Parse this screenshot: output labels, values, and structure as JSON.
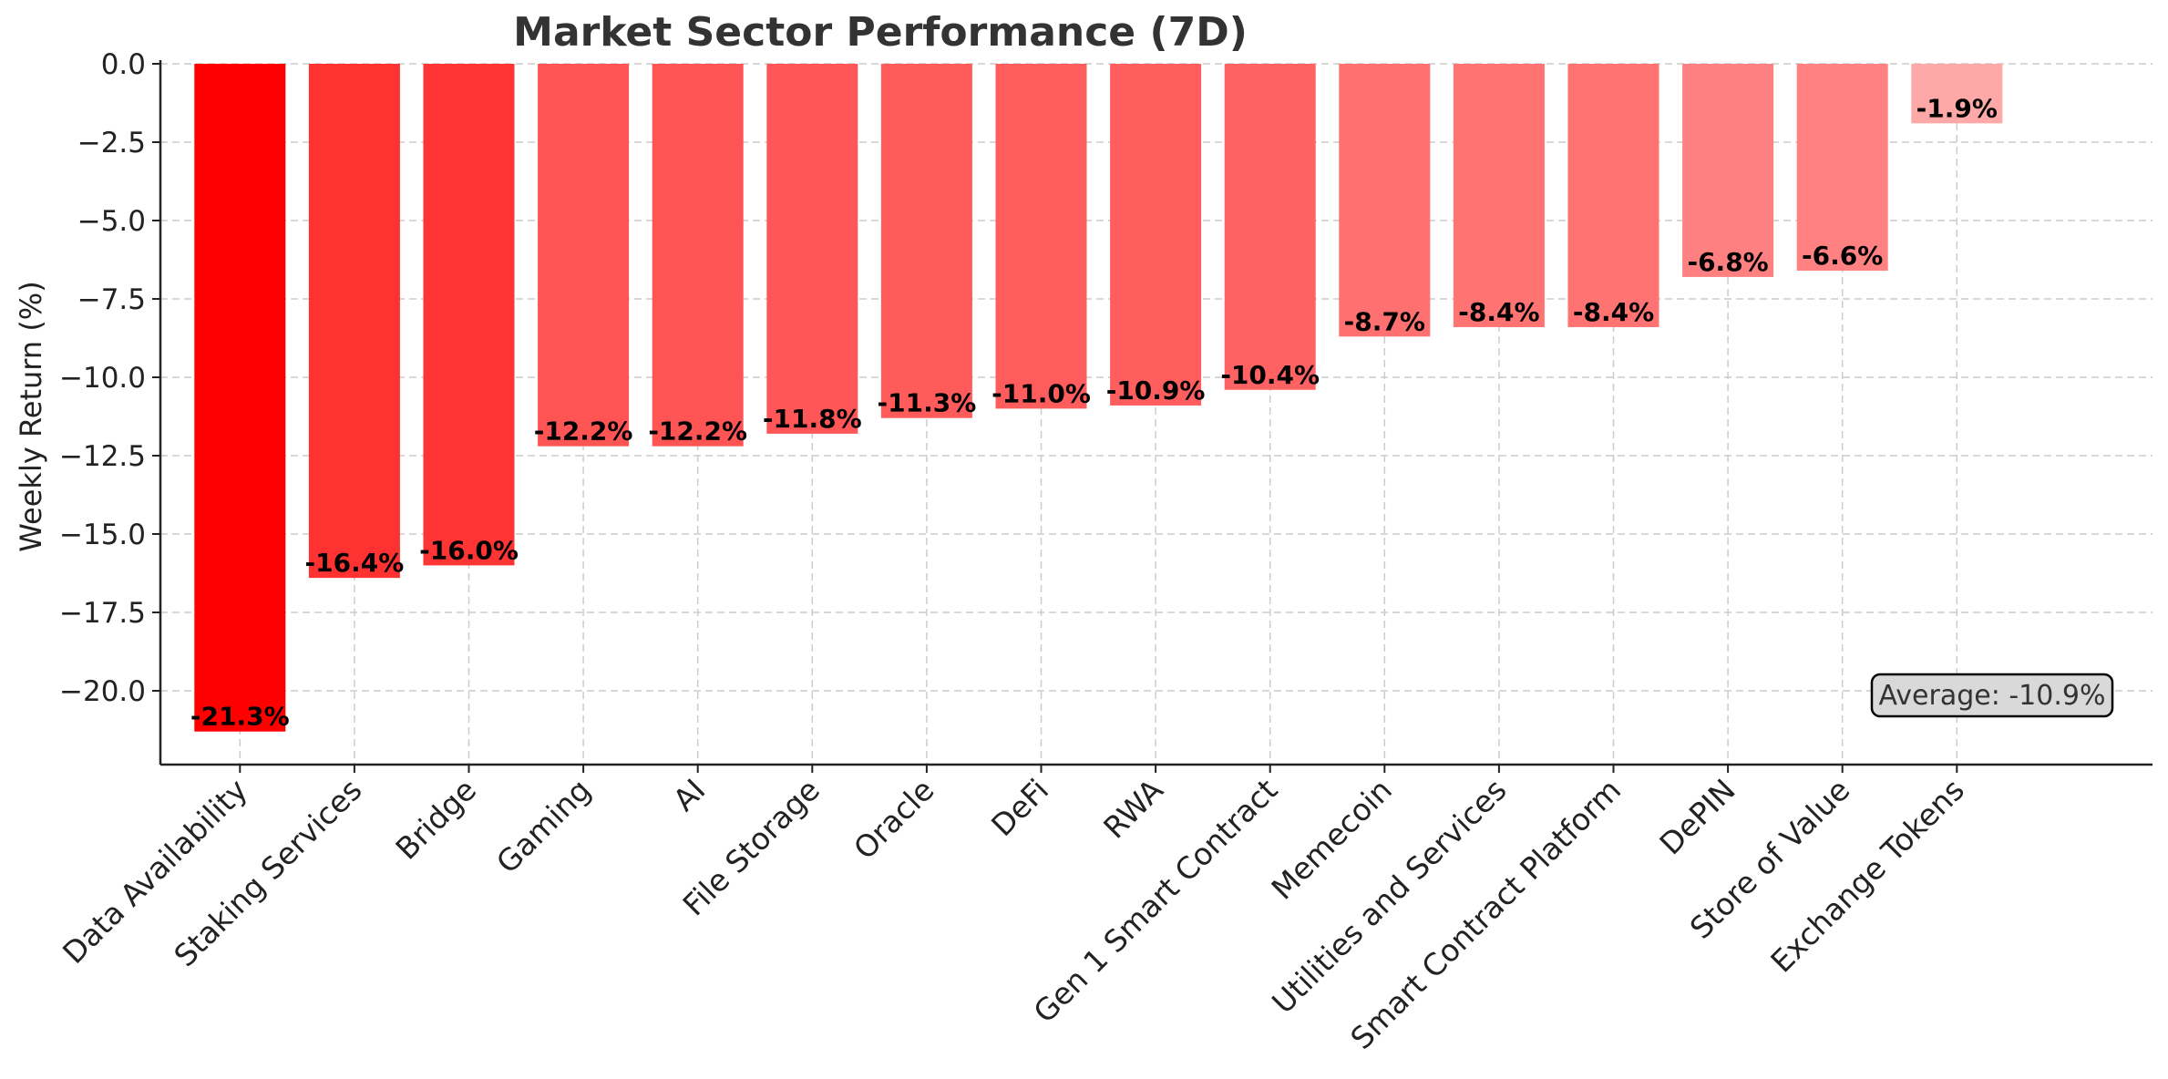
{
  "chart_data": {
    "type": "bar",
    "title": "Market Sector Performance (7D)",
    "xlabel": "",
    "ylabel": "Weekly Return (%)",
    "ylim": [
      -22.4,
      0
    ],
    "yticks": [
      0.0,
      -2.5,
      -5.0,
      -7.5,
      -10.0,
      -12.5,
      -15.0,
      -17.5,
      -20.0
    ],
    "ytick_labels": [
      "0.0",
      "−2.5",
      "−5.0",
      "−7.5",
      "−10.0",
      "−12.5",
      "−15.0",
      "−17.5",
      "−20.0"
    ],
    "grid": true,
    "categories": [
      "Data Availability",
      "Staking Services",
      "Bridge",
      "Gaming",
      "AI",
      "File Storage",
      "Oracle",
      "DeFi",
      "RWA",
      "Gen 1 Smart Contract",
      "Memecoin",
      "Utilities and Services",
      "Smart Contract Platform",
      "DePIN",
      "Store of Value",
      "Exchange Tokens"
    ],
    "values": [
      -21.3,
      -16.4,
      -16.0,
      -12.2,
      -12.2,
      -11.8,
      -11.3,
      -11.0,
      -10.9,
      -10.4,
      -8.7,
      -8.4,
      -8.4,
      -6.8,
      -6.6,
      -1.9
    ],
    "data_labels": [
      "-21.3%",
      "-16.4%",
      "-16.0%",
      "-12.2%",
      "-12.2%",
      "-11.8%",
      "-11.3%",
      "-11.0%",
      "-10.9%",
      "-10.4%",
      "-8.7%",
      "-8.4%",
      "-8.4%",
      "-6.8%",
      "-6.6%",
      "-1.9%"
    ],
    "colors": [
      "#ff0000",
      "#ff3232",
      "#ff3434",
      "#ff5454",
      "#ff5454",
      "#ff5757",
      "#ff5b5b",
      "#ff5d5d",
      "#ff5e5e",
      "#ff6262",
      "#ff7070",
      "#ff7373",
      "#ff7373",
      "#ff8080",
      "#ff8181",
      "#ffa8a8"
    ],
    "annotation": "Average: -10.9%",
    "annotation_placement": "bottom-right"
  }
}
